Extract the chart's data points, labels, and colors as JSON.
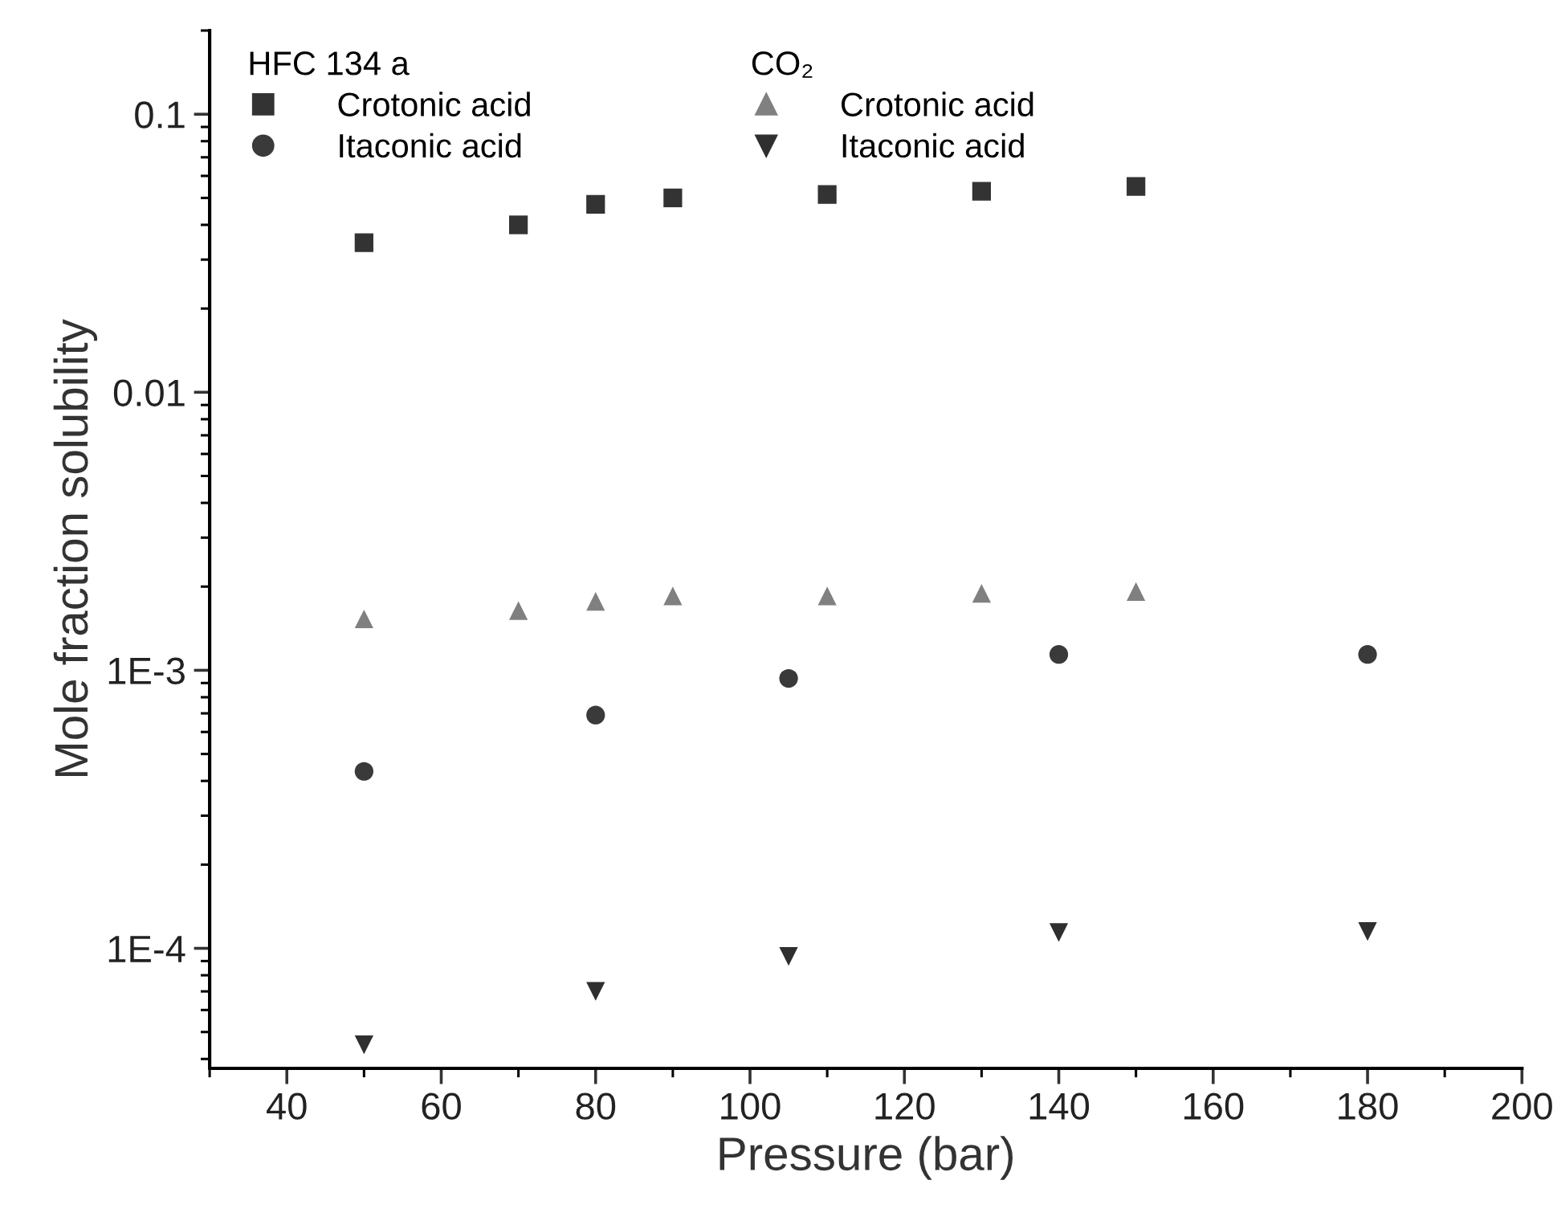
{
  "chart_data": {
    "type": "scatter",
    "xlabel": "Pressure (bar)",
    "ylabel": "Mole fraction solubility",
    "log": "y",
    "xlim": [
      30,
      200
    ],
    "xticks": [
      40,
      60,
      80,
      100,
      120,
      140,
      160,
      180,
      200
    ],
    "ylim": [
      3.7e-05,
      0.2
    ],
    "yticks": [
      {
        "value": 0.0001,
        "label": "1E-4"
      },
      {
        "value": 0.001,
        "label": "1E-3"
      },
      0.01,
      0.1
    ],
    "grid": false,
    "legend": "top left",
    "annotations": [
      "HFC 134 a",
      "CO₂"
    ],
    "series": [
      {
        "name": "Crotonic acid",
        "color": "#333333",
        "marker": "square",
        "x": [
          50,
          70,
          80,
          90,
          110,
          130,
          150
        ],
        "values": [
          0.0345,
          0.04,
          0.0474,
          0.05,
          0.0514,
          0.0528,
          0.055
        ]
      },
      {
        "name": "Itaconic acid",
        "color": "#3a3a3a",
        "marker": "circle",
        "x": [
          50,
          80,
          105,
          140,
          180
        ],
        "values": [
          0.000433,
          0.00069,
          0.000935,
          0.00114,
          0.00114
        ]
      },
      {
        "name": "Crotonic acid",
        "color": "#808080",
        "marker": "triangle",
        "x": [
          50,
          70,
          80,
          90,
          110,
          130,
          150
        ],
        "values": [
          0.00153,
          0.00164,
          0.00177,
          0.00185,
          0.00185,
          0.00189,
          0.00192
        ]
      },
      {
        "name": "Itaconic acid",
        "color": "#2f2f2f",
        "marker": "triangle_down",
        "x": [
          50,
          80,
          105,
          140,
          180
        ],
        "values": [
          4.5e-05,
          7e-05,
          9.35e-05,
          0.000114,
          0.000115
        ]
      }
    ]
  }
}
